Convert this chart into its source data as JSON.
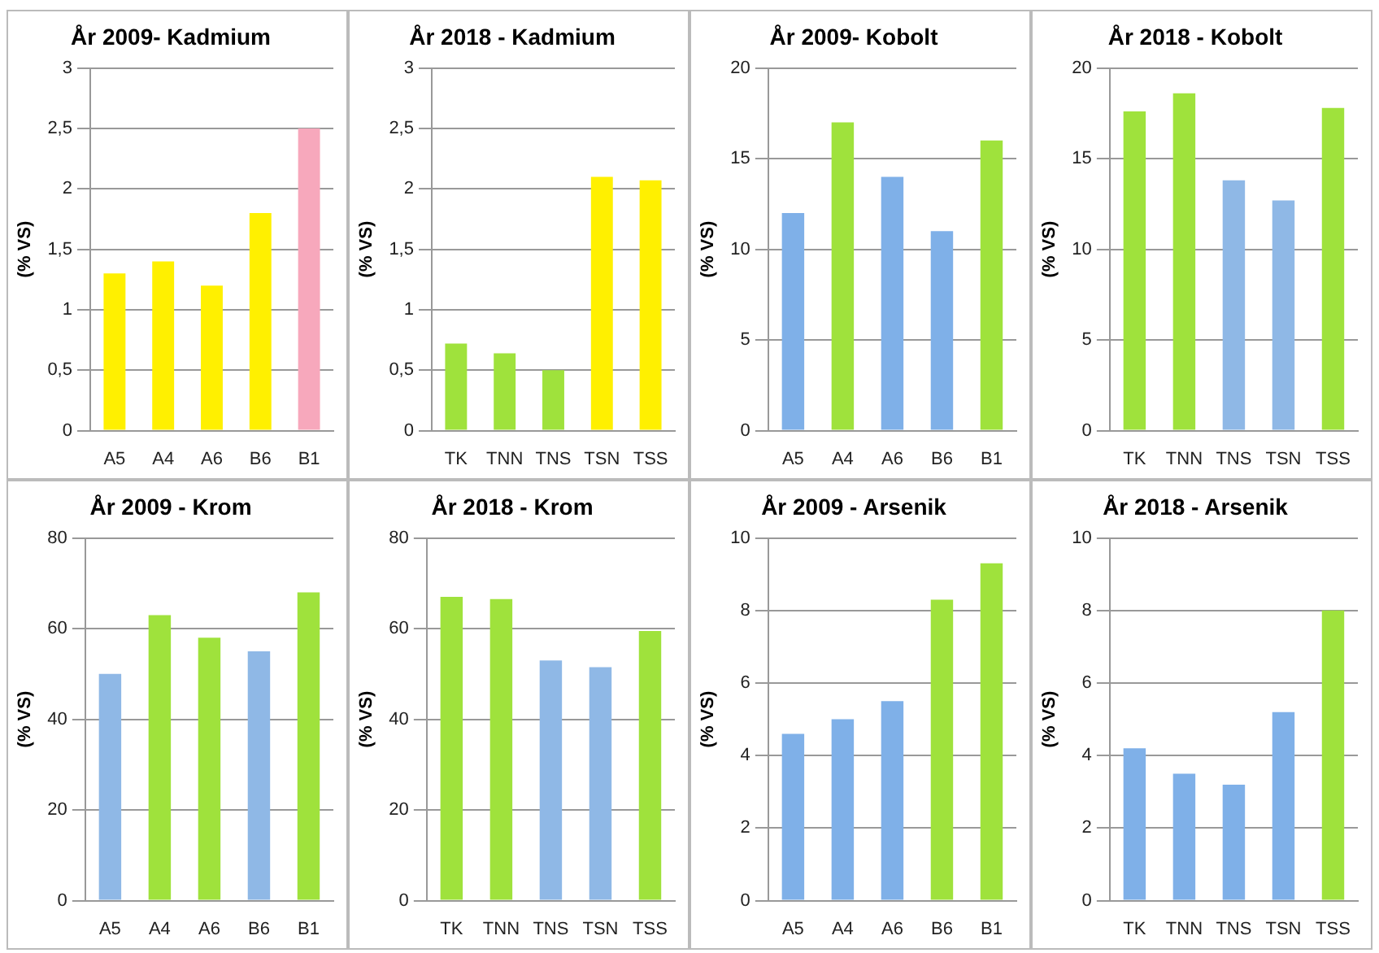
{
  "chart_data": [
    {
      "type": "bar",
      "title": "År 2009- Kadmium",
      "ylabel": "(% VS)",
      "categories": [
        "A5",
        "A4",
        "A6",
        "B6",
        "B1"
      ],
      "values": [
        1.3,
        1.4,
        1.2,
        1.8,
        2.5
      ],
      "colors": [
        "#fff000",
        "#fff000",
        "#fff000",
        "#fff000",
        "#f7a8bc"
      ],
      "ylim": [
        0,
        3
      ],
      "yticks": [
        0,
        {
          "value": 0.5,
          "label": "0,5"
        },
        1,
        {
          "value": 1.5,
          "label": "1,5"
        },
        2,
        {
          "value": 2.5,
          "label": "2,5"
        },
        3
      ],
      "grid": "y"
    },
    {
      "type": "bar",
      "title": "År 2018 - Kadmium",
      "ylabel": "(% VS)",
      "categories": [
        "TK",
        "TNN",
        "TNS",
        "TSN",
        "TSS"
      ],
      "values": [
        0.72,
        0.64,
        0.5,
        2.1,
        2.07
      ],
      "colors": [
        "#9fe23c",
        "#9fe23c",
        "#9fe23c",
        "#fff000",
        "#fff000"
      ],
      "ylim": [
        0,
        3
      ],
      "yticks": [
        0,
        {
          "value": 0.5,
          "label": "0,5"
        },
        1,
        {
          "value": 1.5,
          "label": "1,5"
        },
        2,
        {
          "value": 2.5,
          "label": "2,5"
        },
        3
      ],
      "grid": "y"
    },
    {
      "type": "bar",
      "title": "År 2009- Kobolt",
      "ylabel": "(% VS)",
      "categories": [
        "A5",
        "A4",
        "A6",
        "B6",
        "B1"
      ],
      "values": [
        12,
        17,
        14,
        11,
        16
      ],
      "colors": [
        "#7fb0e8",
        "#9fe23c",
        "#7fb0e8",
        "#7fb0e8",
        "#9fe23c"
      ],
      "ylim": [
        0,
        20
      ],
      "yticks": [
        0,
        5,
        10,
        15,
        20
      ],
      "grid": "y"
    },
    {
      "type": "bar",
      "title": "År 2018 - Kobolt",
      "ylabel": "(% VS)",
      "categories": [
        "TK",
        "TNN",
        "TNS",
        "TSN",
        "TSS"
      ],
      "values": [
        17.6,
        18.6,
        13.8,
        12.7,
        17.8
      ],
      "colors": [
        "#9fe23c",
        "#9fe23c",
        "#8fb8e6",
        "#8fb8e6",
        "#9fe23c"
      ],
      "ylim": [
        0,
        20
      ],
      "yticks": [
        0,
        5,
        10,
        15,
        20
      ],
      "grid": "y"
    },
    {
      "type": "bar",
      "title": "År 2009 - Krom",
      "ylabel": "(% VS)",
      "categories": [
        "A5",
        "A4",
        "A6",
        "B6",
        "B1"
      ],
      "values": [
        50,
        63,
        58,
        55,
        68
      ],
      "colors": [
        "#8fb8e6",
        "#9fe23c",
        "#9fe23c",
        "#8fb8e6",
        "#9fe23c"
      ],
      "ylim": [
        0,
        80
      ],
      "yticks": [
        0,
        20,
        40,
        60,
        80
      ],
      "grid": "y"
    },
    {
      "type": "bar",
      "title": "År 2018 - Krom",
      "ylabel": "(% VS)",
      "categories": [
        "TK",
        "TNN",
        "TNS",
        "TSN",
        "TSS"
      ],
      "values": [
        67,
        66.5,
        53,
        51.5,
        59.5
      ],
      "colors": [
        "#9fe23c",
        "#9fe23c",
        "#8fb8e6",
        "#8fb8e6",
        "#9fe23c"
      ],
      "ylim": [
        0,
        80
      ],
      "yticks": [
        0,
        20,
        40,
        60,
        80
      ],
      "grid": "y"
    },
    {
      "type": "bar",
      "title": "År 2009 - Arsenik",
      "ylabel": "(% VS)",
      "categories": [
        "A5",
        "A4",
        "A6",
        "B6",
        "B1"
      ],
      "values": [
        4.6,
        5,
        5.5,
        8.3,
        9.3
      ],
      "colors": [
        "#7fb0e8",
        "#7fb0e8",
        "#7fb0e8",
        "#9fe23c",
        "#9fe23c"
      ],
      "ylim": [
        0,
        10
      ],
      "yticks": [
        0,
        2,
        4,
        6,
        8,
        10
      ],
      "grid": "y"
    },
    {
      "type": "bar",
      "title": "År 2018 - Arsenik",
      "ylabel": "(% VS)",
      "categories": [
        "TK",
        "TNN",
        "TNS",
        "TSN",
        "TSS"
      ],
      "values": [
        4.2,
        3.5,
        3.2,
        5.2,
        8
      ],
      "colors": [
        "#7fb0e8",
        "#7fb0e8",
        "#7fb0e8",
        "#7fb0e8",
        "#9fe23c"
      ],
      "ylim": [
        0,
        10
      ],
      "yticks": [
        0,
        2,
        4,
        6,
        8,
        10
      ],
      "grid": "y"
    }
  ]
}
